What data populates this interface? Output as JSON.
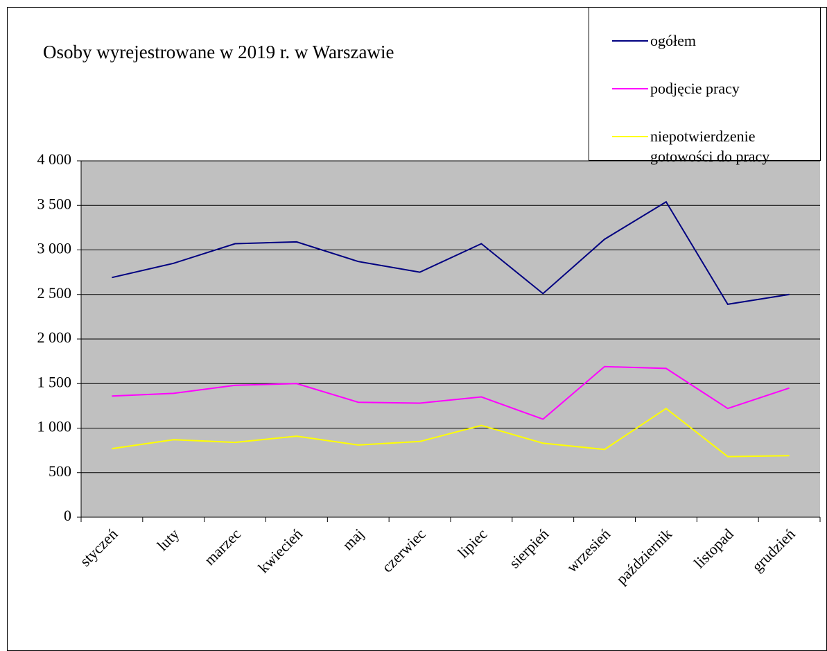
{
  "chart_data": {
    "type": "line",
    "title": "Osoby wyrejestrowane w 2019 r. w Warszawie",
    "categories": [
      "styczeń",
      "luty",
      "marzec",
      "kwiecień",
      "maj",
      "czerwiec",
      "lipiec",
      "sierpień",
      "wrzesień",
      "październik",
      "listopad",
      "grudzień"
    ],
    "series": [
      {
        "name": "ogółem",
        "color": "#000080",
        "values": [
          2690,
          2850,
          3070,
          3090,
          2870,
          2750,
          3070,
          2510,
          3120,
          3540,
          2390,
          2500
        ]
      },
      {
        "name": "podjęcie pracy",
        "color": "#ff00ff",
        "values": [
          1360,
          1390,
          1480,
          1500,
          1290,
          1280,
          1350,
          1100,
          1690,
          1670,
          1220,
          1450
        ]
      },
      {
        "name": "niepotwierdzenie gotowości do pracy",
        "color": "#ffff00",
        "values": [
          770,
          870,
          840,
          910,
          810,
          850,
          1030,
          830,
          760,
          1220,
          680,
          690
        ]
      }
    ],
    "ylim": [
      0,
      4000
    ],
    "yticks": [
      0,
      500,
      {
        "value": 1000,
        "label": "1 000"
      },
      {
        "value": 1500,
        "label": "1 500"
      },
      {
        "value": 2000,
        "label": "2 000"
      },
      {
        "value": 2500,
        "label": "2 500"
      },
      {
        "value": 3000,
        "label": "3 000"
      },
      {
        "value": 3500,
        "label": "3 500"
      },
      {
        "value": 4000,
        "label": "4 000"
      }
    ],
    "grid": true,
    "plot_background": "#c0c0c0",
    "legend": "top-right"
  }
}
